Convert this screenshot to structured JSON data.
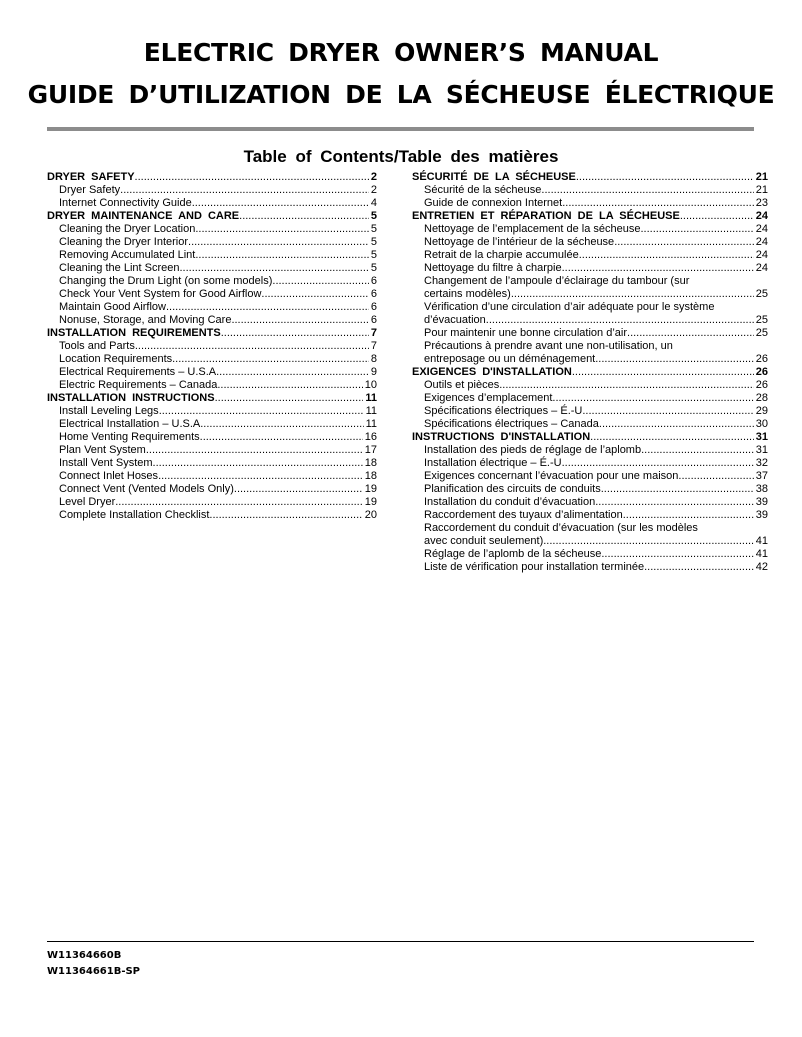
{
  "title": {
    "line1": "ELECTRIC DRYER OWNER’S MANUAL",
    "line2": "GUIDE D’UTILIZATION DE LA SÉCHEUSE ÉLECTRIQUE"
  },
  "toc_heading": "Table of Contents/Table des matières",
  "left": [
    {
      "type": "h",
      "text": "DRYER SAFETY",
      "page": "2"
    },
    {
      "type": "sub",
      "text": "Dryer Safety",
      "page": "2"
    },
    {
      "type": "sub",
      "text": "Internet Connectivity Guide",
      "page": "4"
    },
    {
      "type": "h",
      "text": "DRYER MAINTENANCE AND CARE",
      "page": "5"
    },
    {
      "type": "sub",
      "text": "Cleaning the Dryer Location",
      "page": "5"
    },
    {
      "type": "sub",
      "text": "Cleaning the Dryer Interior",
      "page": "5"
    },
    {
      "type": "sub",
      "text": "Removing Accumulated Lint",
      "page": "5"
    },
    {
      "type": "sub",
      "text": "Cleaning the Lint Screen",
      "page": "5"
    },
    {
      "type": "sub",
      "text": "Changing the Drum Light (on some models)",
      "page": "6"
    },
    {
      "type": "sub",
      "text": "Check Your Vent System for Good Airflow",
      "page": "6"
    },
    {
      "type": "sub",
      "text": "Maintain Good Airflow",
      "page": "6"
    },
    {
      "type": "sub",
      "text": "Nonuse, Storage, and Moving Care",
      "page": "6"
    },
    {
      "type": "h",
      "text": "INSTALLATION REQUIREMENTS",
      "page": "7"
    },
    {
      "type": "sub",
      "text": "Tools and Parts",
      "page": "7"
    },
    {
      "type": "sub",
      "text": "Location Requirements",
      "page": "8"
    },
    {
      "type": "sub",
      "text": "Electrical Requirements – U.S.A.",
      "page": "9"
    },
    {
      "type": "sub",
      "text": "Electric Requirements – Canada",
      "page": "10"
    },
    {
      "type": "h",
      "text": "INSTALLATION INSTRUCTIONS",
      "page": "11"
    },
    {
      "type": "sub",
      "text": "Install Leveling Legs",
      "page": "11"
    },
    {
      "type": "sub",
      "text": "Electrical Installation – U.S.A.",
      "page": "11"
    },
    {
      "type": "sub",
      "text": "Home Venting Requirements",
      "page": "16"
    },
    {
      "type": "sub",
      "text": "Plan Vent System",
      "page": "17"
    },
    {
      "type": "sub",
      "text": "Install Vent System",
      "page": "18"
    },
    {
      "type": "sub",
      "text": "Connect Inlet Hoses",
      "page": "18"
    },
    {
      "type": "sub",
      "text": "Connect Vent (Vented Models Only)",
      "page": "19"
    },
    {
      "type": "sub",
      "text": "Level Dryer",
      "page": "19"
    },
    {
      "type": "sub",
      "text": "Complete Installation Checklist",
      "page": "20"
    }
  ],
  "right": [
    {
      "type": "h",
      "text": "SÉCURITÉ DE LA SÉCHEUSE",
      "page": "21"
    },
    {
      "type": "sub",
      "text": "Sécurité de la sécheuse",
      "page": "21"
    },
    {
      "type": "sub",
      "text": "Guide de connexion Internet",
      "page": "23"
    },
    {
      "type": "h",
      "text": "ENTRETIEN ET RÉPARATION DE LA SÉCHEUSE",
      "page": "24"
    },
    {
      "type": "sub",
      "text": "Nettoyage de l’emplacement de la sécheuse",
      "page": "24"
    },
    {
      "type": "sub",
      "text": "Nettoyage de l’intérieur de la sécheuse",
      "page": "24"
    },
    {
      "type": "sub",
      "text": "Retrait de la charpie accumulée",
      "page": "24"
    },
    {
      "type": "sub",
      "text": "Nettoyage du filtre à charpie",
      "page": "24"
    },
    {
      "type": "sub2",
      "line1": "Changement de l’ampoule d’éclairage du tambour (sur",
      "text": "certains modèles)",
      "page": "25"
    },
    {
      "type": "sub2",
      "line1": "Vérification d’une circulation d’air adéquate pour le système",
      "text": "d’évacuation",
      "page": "25"
    },
    {
      "type": "sub",
      "text": "Pour maintenir une bonne circulation d’air",
      "page": "25"
    },
    {
      "type": "sub2",
      "line1": "Précautions à prendre avant une non-utilisation, un",
      "text": "entreposage ou un déménagement",
      "page": "26"
    },
    {
      "type": "h",
      "text": "EXIGENCES D'INSTALLATION",
      "page": "26"
    },
    {
      "type": "sub",
      "text": "Outils et pièces",
      "page": "26"
    },
    {
      "type": "sub",
      "text": "Exigences d’emplacement",
      "page": "28"
    },
    {
      "type": "sub",
      "text": "Spécifications électriques – É.-U.",
      "page": "29"
    },
    {
      "type": "sub",
      "text": "Spécifications électriques – Canada",
      "page": "30"
    },
    {
      "type": "h",
      "text": "INSTRUCTIONS D'INSTALLATION",
      "page": "31"
    },
    {
      "type": "sub",
      "text": "Installation des pieds de réglage de l’aplomb",
      "page": "31"
    },
    {
      "type": "sub",
      "text": "Installation électrique – É.-U.",
      "page": "32"
    },
    {
      "type": "sub",
      "text": "Exigences concernant l’évacuation pour une maison",
      "page": "37"
    },
    {
      "type": "sub",
      "text": "Planification des circuits de conduits",
      "page": "38"
    },
    {
      "type": "sub",
      "text": "Installation du conduit d’évacuation",
      "page": "39"
    },
    {
      "type": "sub",
      "text": "Raccordement des tuyaux d’alimentation",
      "page": "39"
    },
    {
      "type": "sub2",
      "line1": "Raccordement du conduit d’évacuation (sur les modèles",
      "text": "avec conduit seulement)",
      "page": "41"
    },
    {
      "type": "sub",
      "text": "Réglage de l’aplomb de la sécheuse",
      "page": "41"
    },
    {
      "type": "sub",
      "text": "Liste de vérification pour installation terminée",
      "page": "42"
    }
  ],
  "footer": {
    "code1": "W11364660B",
    "code2": "W11364661B-SP"
  }
}
